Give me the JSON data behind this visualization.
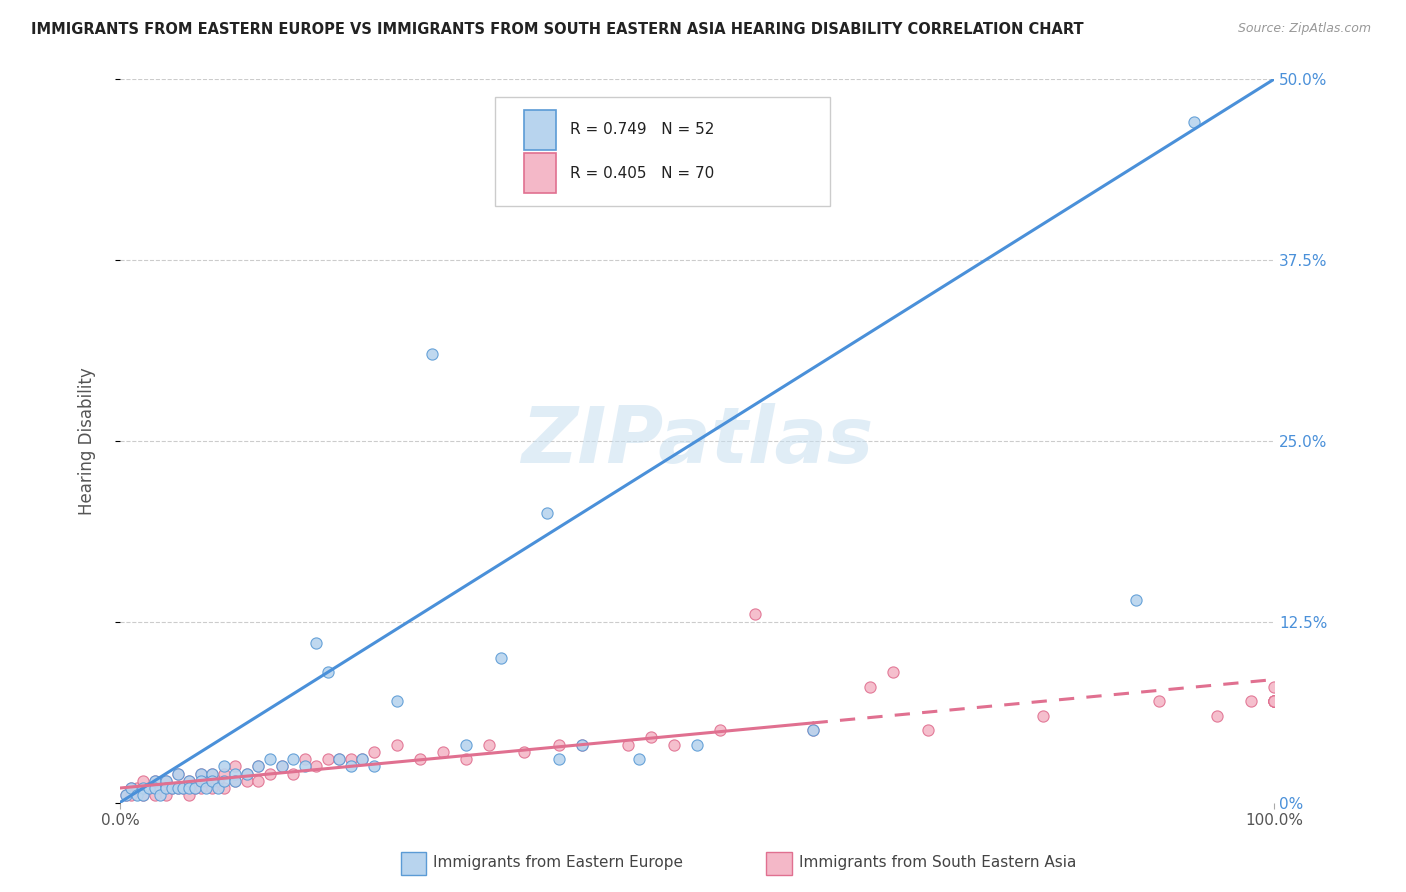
{
  "title": "IMMIGRANTS FROM EASTERN EUROPE VS IMMIGRANTS FROM SOUTH EASTERN ASIA HEARING DISABILITY CORRELATION CHART",
  "source": "Source: ZipAtlas.com",
  "xlabel_blue": "Immigrants from Eastern Europe",
  "xlabel_pink": "Immigrants from South Eastern Asia",
  "ylabel": "Hearing Disability",
  "r_blue": 0.749,
  "n_blue": 52,
  "r_pink": 0.405,
  "n_pink": 70,
  "color_blue_fill": "#b8d4ee",
  "color_blue_edge": "#5b9bd5",
  "color_pink_fill": "#f4b8c8",
  "color_pink_edge": "#e07090",
  "color_blue_line": "#4a90d9",
  "color_pink_line": "#e07090",
  "xlim": [
    0,
    100
  ],
  "ylim": [
    0,
    50
  ],
  "yticks": [
    0,
    12.5,
    25.0,
    37.5,
    50.0
  ],
  "ytick_labels": [
    "0%",
    "12.5%",
    "25.0%",
    "37.5%",
    "50.0%"
  ],
  "watermark": "ZIPatlas",
  "blue_line_x0": 0,
  "blue_line_y0": 0,
  "blue_line_x1": 100,
  "blue_line_y1": 50,
  "pink_line_x0": 0,
  "pink_line_y0": 1.0,
  "pink_line_x1": 100,
  "pink_line_y1": 8.5,
  "pink_dash_start": 60,
  "blue_scatter_x": [
    0.5,
    1,
    1.5,
    2,
    2,
    2.5,
    3,
    3,
    3.5,
    4,
    4,
    4.5,
    5,
    5,
    5.5,
    6,
    6,
    6.5,
    7,
    7,
    7.5,
    8,
    8,
    8.5,
    9,
    9,
    10,
    10,
    11,
    12,
    13,
    14,
    15,
    16,
    17,
    18,
    19,
    20,
    21,
    22,
    24,
    27,
    30,
    33,
    37,
    38,
    40,
    45,
    50,
    60,
    88,
    93
  ],
  "blue_scatter_y": [
    0.5,
    1,
    0.5,
    1,
    0.5,
    1,
    1.5,
    1,
    0.5,
    1.5,
    1,
    1,
    2,
    1,
    1,
    1.5,
    1,
    1,
    2,
    1.5,
    1,
    2,
    1.5,
    1,
    2.5,
    1.5,
    2,
    1.5,
    2,
    2.5,
    3,
    2.5,
    3,
    2.5,
    11,
    9,
    3,
    2.5,
    3,
    2.5,
    7,
    31,
    4,
    10,
    20,
    3,
    4,
    3,
    4,
    5,
    14,
    47
  ],
  "pink_scatter_x": [
    0.5,
    1,
    1,
    1.5,
    2,
    2,
    2.5,
    3,
    3,
    3.5,
    4,
    4,
    4.5,
    5,
    5,
    5.5,
    6,
    6,
    6.5,
    7,
    7,
    7.5,
    8,
    8,
    8.5,
    9,
    9,
    10,
    10,
    11,
    11,
    12,
    12,
    13,
    14,
    15,
    16,
    17,
    18,
    19,
    20,
    21,
    22,
    24,
    26,
    28,
    30,
    32,
    35,
    38,
    40,
    44,
    46,
    48,
    52,
    55,
    60,
    65,
    67,
    70,
    80,
    90,
    95,
    98,
    100,
    100,
    100,
    100,
    100,
    100,
    100
  ],
  "pink_scatter_y": [
    0.5,
    1,
    0.5,
    1,
    1.5,
    0.5,
    1,
    1.5,
    0.5,
    1,
    1.5,
    0.5,
    1,
    2,
    1,
    1,
    1.5,
    0.5,
    1,
    2,
    1,
    1.5,
    2,
    1,
    1.5,
    2,
    1,
    2.5,
    1.5,
    2,
    1.5,
    2.5,
    1.5,
    2,
    2.5,
    2,
    3,
    2.5,
    3,
    3,
    3,
    3,
    3.5,
    4,
    3,
    3.5,
    3,
    4,
    3.5,
    4,
    4,
    4,
    4.5,
    4,
    5,
    13,
    5,
    8,
    9,
    5,
    6,
    7,
    6,
    7,
    7,
    7,
    8,
    7,
    7,
    7,
    7
  ]
}
